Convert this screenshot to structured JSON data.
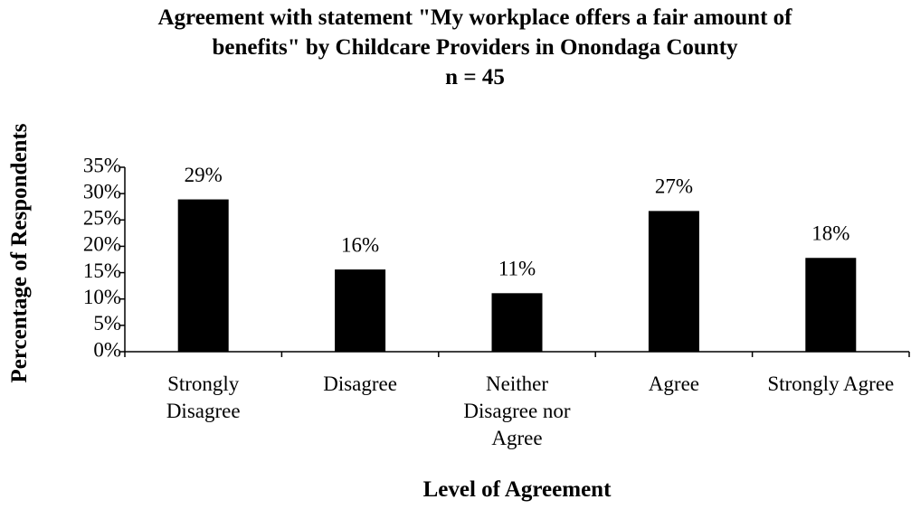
{
  "chart_data": {
    "type": "bar",
    "title": "Agreement with statement \"My workplace offers a fair amount of benefits\" by Childcare Providers in Onondaga County",
    "subtitle": "n = 45",
    "x_label": "Level of Agreement",
    "y_label": "Percentage of Respondents",
    "categories": [
      "Strongly Disagree",
      "Disagree",
      "Neither Disagree nor Agree",
      "Agree",
      "Strongly Agree"
    ],
    "values": [
      28.9,
      15.6,
      11.1,
      26.7,
      17.8
    ],
    "value_labels": [
      "29%",
      "16%",
      "11%",
      "27%",
      "18%"
    ],
    "color": "#000000",
    "ylim": [
      0,
      35
    ],
    "yticks": [
      {
        "value": 0,
        "label": "0%"
      },
      {
        "value": 5,
        "label": "5%"
      },
      {
        "value": 10,
        "label": "10%"
      },
      {
        "value": 15,
        "label": "15%"
      },
      {
        "value": 20,
        "label": "20%"
      },
      {
        "value": 25,
        "label": "25%"
      },
      {
        "value": 30,
        "label": "30%"
      },
      {
        "value": 35,
        "label": "35%"
      }
    ],
    "grid": false
  }
}
